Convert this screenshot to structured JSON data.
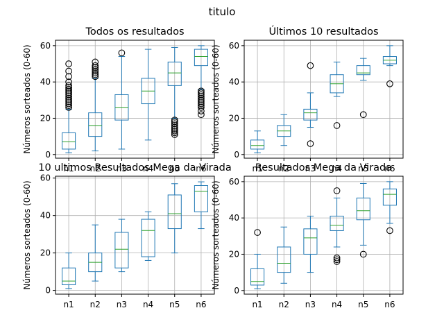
{
  "suptitle": "titulo",
  "colors": {
    "box": "#1f77b4",
    "median": "#2ca02c",
    "grid": "#b0b0b0",
    "outlier": "#000000"
  },
  "chart_data": [
    {
      "type": "boxplot",
      "title": "Todos os resultados",
      "xlabel": "",
      "ylabel": "Números sorteados (0-60)",
      "categories": [
        "n1",
        "n2",
        "n3",
        "n4",
        "n5",
        "n6"
      ],
      "ylim": [
        -2,
        63
      ],
      "yticks": [
        0,
        20,
        40,
        60
      ],
      "grid": true,
      "boxes": [
        {
          "whislo": 1,
          "q1": 3,
          "med": 7,
          "q3": 12,
          "whishi": 25,
          "fliers": [
            26,
            27,
            28,
            29,
            30,
            31,
            32,
            33,
            34,
            35,
            36,
            37,
            38,
            40,
            43,
            46,
            50
          ]
        },
        {
          "whislo": 2,
          "q1": 10,
          "med": 16,
          "q3": 23,
          "whishi": 42,
          "fliers": [
            43,
            44,
            45,
            46,
            47,
            48,
            49,
            51
          ]
        },
        {
          "whislo": 3,
          "q1": 19,
          "med": 26,
          "q3": 33,
          "whishi": 54,
          "fliers": [
            56
          ]
        },
        {
          "whislo": 8,
          "q1": 28,
          "med": 35,
          "q3": 42,
          "whishi": 58,
          "fliers": []
        },
        {
          "whislo": 20,
          "q1": 38,
          "med": 45,
          "q3": 51,
          "whishi": 59,
          "fliers": [
            11,
            12,
            13,
            14,
            15,
            16,
            17,
            18,
            19
          ]
        },
        {
          "whislo": 36,
          "q1": 49,
          "med": 54,
          "q3": 58,
          "whishi": 60,
          "fliers": [
            22,
            24,
            26,
            27,
            28,
            29,
            30,
            31,
            32,
            33,
            34,
            35
          ]
        }
      ]
    },
    {
      "type": "boxplot",
      "title": "Últimos 10 resultados",
      "xlabel": "",
      "ylabel": "Números sorteados (0-60)",
      "categories": [
        "n1",
        "n2",
        "n3",
        "n4",
        "n5",
        "n6"
      ],
      "ylim": [
        -2,
        63
      ],
      "yticks": [
        0,
        20,
        40,
        60
      ],
      "grid": true,
      "boxes": [
        {
          "whislo": 1,
          "q1": 3,
          "med": 5,
          "q3": 8,
          "whishi": 13,
          "fliers": []
        },
        {
          "whislo": 5,
          "q1": 10,
          "med": 13,
          "q3": 16,
          "whishi": 22,
          "fliers": []
        },
        {
          "whislo": 15,
          "q1": 19,
          "med": 23,
          "q3": 25,
          "whishi": 34,
          "fliers": [
            6,
            49
          ]
        },
        {
          "whislo": 32,
          "q1": 34,
          "med": 39,
          "q3": 44,
          "whishi": 51,
          "fliers": [
            16
          ]
        },
        {
          "whislo": 41,
          "q1": 44,
          "med": 45,
          "q3": 49,
          "whishi": 53,
          "fliers": [
            22
          ]
        },
        {
          "whislo": 49,
          "q1": 50,
          "med": 52,
          "q3": 54,
          "whishi": 60,
          "fliers": [
            39
          ]
        }
      ]
    },
    {
      "type": "boxplot",
      "title": "10 ultimos Resultados Mega da Virada",
      "xlabel": "",
      "ylabel": "Números sorteados (0-60)",
      "categories": [
        "n1",
        "n2",
        "n3",
        "n4",
        "n5",
        "n6"
      ],
      "ylim": [
        -2,
        61
      ],
      "yticks": [
        0,
        20,
        40,
        60
      ],
      "grid": true,
      "boxes": [
        {
          "whislo": 1,
          "q1": 3,
          "med": 5,
          "q3": 12,
          "whishi": 20,
          "fliers": []
        },
        {
          "whislo": 5,
          "q1": 10,
          "med": 15,
          "q3": 20,
          "whishi": 35,
          "fliers": []
        },
        {
          "whislo": 10,
          "q1": 12,
          "med": 22,
          "q3": 31,
          "whishi": 38,
          "fliers": []
        },
        {
          "whislo": 16,
          "q1": 18,
          "med": 32,
          "q3": 38,
          "whishi": 42,
          "fliers": []
        },
        {
          "whislo": 20,
          "q1": 33,
          "med": 41,
          "q3": 51,
          "whishi": 57,
          "fliers": []
        },
        {
          "whislo": 33,
          "q1": 42,
          "med": 53,
          "q3": 56,
          "whishi": 58,
          "fliers": []
        }
      ]
    },
    {
      "type": "boxplot",
      "title": "Resultados Mega da Virada",
      "xlabel": "",
      "ylabel": "Números sorteados (0-60)",
      "categories": [
        "n1",
        "n2",
        "n3",
        "n4",
        "n5",
        "n6"
      ],
      "ylim": [
        -2,
        63
      ],
      "yticks": [
        0,
        20,
        40,
        60
      ],
      "grid": true,
      "boxes": [
        {
          "whislo": 1,
          "q1": 3,
          "med": 5,
          "q3": 12,
          "whishi": 20,
          "fliers": [
            32
          ]
        },
        {
          "whislo": 4,
          "q1": 10,
          "med": 15,
          "q3": 24,
          "whishi": 35,
          "fliers": []
        },
        {
          "whislo": 10,
          "q1": 20,
          "med": 29,
          "q3": 34,
          "whishi": 41,
          "fliers": []
        },
        {
          "whislo": 24,
          "q1": 33,
          "med": 36,
          "q3": 41,
          "whishi": 51,
          "fliers": [
            16,
            17,
            18,
            55
          ]
        },
        {
          "whislo": 25,
          "q1": 39,
          "med": 44,
          "q3": 51,
          "whishi": 59,
          "fliers": [
            20
          ]
        },
        {
          "whislo": 37,
          "q1": 47,
          "med": 53,
          "q3": 56,
          "whishi": 60,
          "fliers": [
            33
          ]
        }
      ]
    }
  ]
}
